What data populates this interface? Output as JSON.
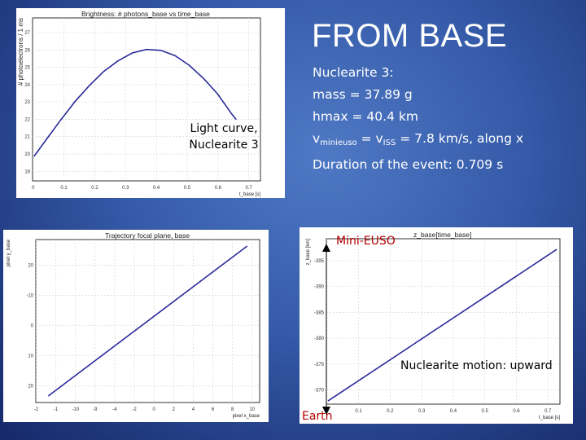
{
  "slide": {
    "title": "FROM BASE",
    "info": {
      "heading": "Nuclearite 3:",
      "mass": "mass = 37.89 g",
      "hmax": "hmax = 40.4 km",
      "velocity_prefix": "v",
      "velocity_sub1": "minieuso",
      "velocity_mid": " = v",
      "velocity_sub2": "ISS",
      "velocity_suffix": " = 7.8 km/s, along x",
      "duration": "Duration of the event: 0.709 s"
    },
    "labels": {
      "light_curve": "Light curve, Nuclearite 3",
      "mini_euso": "Mini-EUSO",
      "earth": "Earth",
      "motion": "Nuclearite motion: upward"
    },
    "colors": {
      "background": "#355aa8",
      "curve": "#2a2a9a",
      "label_red": "#b00000"
    }
  },
  "chart_data": [
    {
      "type": "line",
      "title": "Brightness: # photons_base vs time_base",
      "xlabel": "t_base [s]",
      "ylabel": "# photoelectrons / 1 ms",
      "xlim": [
        0,
        0.8
      ],
      "ylim": [
        18.5,
        27.8
      ],
      "xticks": [
        "0",
        "0.1",
        "0.2",
        "0.3",
        "0.4",
        "0.5",
        "0.6",
        "0.7"
      ],
      "yticks": [
        "19",
        "20",
        "21",
        "22",
        "23",
        "24",
        "25",
        "26",
        "27"
      ],
      "x": [
        0.005,
        0.05,
        0.1,
        0.15,
        0.2,
        0.25,
        0.3,
        0.35,
        0.4,
        0.45,
        0.5,
        0.55,
        0.6,
        0.65,
        0.7,
        0.715
      ],
      "y": [
        19.9,
        20.9,
        22.0,
        23.05,
        23.95,
        24.75,
        25.35,
        25.8,
        26.0,
        25.95,
        25.65,
        25.1,
        24.35,
        23.45,
        22.3,
        22.0
      ]
    },
    {
      "type": "line",
      "title": "Trajectory focal plane, base",
      "xlabel": "pixel x_base",
      "ylabel": "pixel y_base",
      "xlim": [
        -26,
        10
      ],
      "ylim": [
        -23,
        27
      ],
      "xticks": [
        "-2",
        "-1",
        "-10",
        "-9",
        "-4",
        "-2",
        "0",
        "2",
        "4",
        "6",
        "8",
        "10"
      ],
      "yticks": [
        "20",
        "10",
        "0",
        "-10",
        "20"
      ],
      "x": [
        -24,
        8
      ],
      "y": [
        -21,
        25
      ]
    },
    {
      "type": "line",
      "title": "z_base[time_base]",
      "xlabel": "t_base [s]",
      "ylabel": "z_base [km]",
      "xlim": [
        0,
        0.72
      ],
      "ylim": [
        -397.5,
        -366.5
      ],
      "xticks": [
        "0",
        "0.1",
        "0.2",
        "0.3",
        "0.4",
        "0.5",
        "0.6",
        "0.7"
      ],
      "yticks": [
        "-370",
        "-375",
        "-380",
        "-385",
        "-390",
        "-395"
      ],
      "x": [
        0.005,
        0.71
      ],
      "y": [
        -396.9,
        -368.5
      ]
    }
  ]
}
